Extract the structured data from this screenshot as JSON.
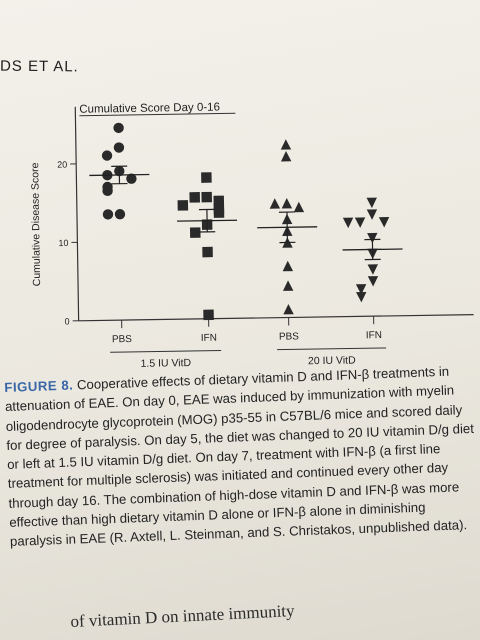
{
  "running_head": "DS ET AL.",
  "chart_data": {
    "type": "scatter",
    "title": "Cumulative Score Day 0-16",
    "ylabel": "Cumulative Disease Score",
    "ylim": [
      0,
      26
    ],
    "yticks": [
      0,
      10,
      20
    ],
    "categories": [
      "PBS",
      "IFN",
      "PBS",
      "IFN"
    ],
    "diet_groups": [
      {
        "label": "1.5 IU VitD",
        "covers": [
          0,
          1
        ]
      },
      {
        "label": "20 IU VitD",
        "covers": [
          2,
          3
        ]
      }
    ],
    "series": [
      {
        "category": "PBS",
        "diet": "1.5 IU VitD",
        "marker": "circle",
        "values": [
          24.5,
          22,
          21,
          19,
          18.5,
          18,
          17,
          16.5,
          13.5,
          13.5
        ],
        "mean": 18.5
      },
      {
        "category": "IFN",
        "diet": "1.5 IU VitD",
        "marker": "square",
        "values": [
          18,
          15.5,
          15.5,
          15,
          14.5,
          14,
          13.5,
          12,
          11,
          8.5,
          0.5
        ],
        "mean": 12.5
      },
      {
        "category": "PBS",
        "diet": "20 IU VitD",
        "marker": "triangle-up",
        "values": [
          22,
          20.5,
          14.5,
          14.5,
          14,
          12.5,
          11,
          9.5,
          6.5,
          4,
          1
        ],
        "mean": 11.5
      },
      {
        "category": "IFN",
        "diet": "20 IU VitD",
        "marker": "triangle-down",
        "values": [
          14.5,
          13,
          12,
          12,
          12,
          10,
          8,
          6,
          4.5,
          3.5,
          2.5
        ],
        "mean": 8.5
      }
    ],
    "error_bar": "mean ± SEM"
  },
  "caption": {
    "label": "FIGURE 8.",
    "text": "Cooperative effects of dietary vitamin D and IFN-β treatments in attenuation of EAE. On day 0, EAE was induced by immunization with myelin oligodendrocyte glycoprotein (MOG) p35-55 in C57BL/6 mice and scored daily for degree of paralysis. On day 5, the diet was changed to 20 IU vitamin D/g diet or left at 1.5 IU vitamin D/g diet. On day 7, treatment with IFN-β (a first line treatment for multiple sclerosis) was initiated and continued every other day through day 16. The combination of high-dose vitamin D and IFN-β was more effective than high dietary vitamin D alone or IFN-β alone in diminishing paralysis in EAE (R. Axtell, L. Steinman, and S. Christakos, unpublished data)."
  },
  "footer_fragment": "of vitamin D on innate immunity"
}
